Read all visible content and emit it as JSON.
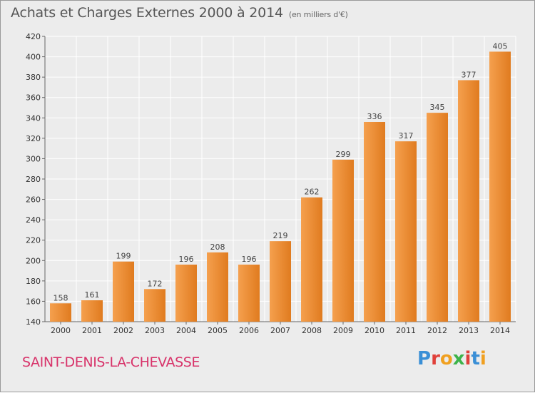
{
  "title": "Achats et Charges Externes 2000 à 2014",
  "unit_label": "(en milliers d'€)",
  "commune": "SAINT-DENIS-LA-CHEVASSE",
  "logo": {
    "letters": [
      "P",
      "r",
      "o",
      "x",
      "i",
      "t",
      "i"
    ],
    "colors": [
      "#3a8fd6",
      "#e0403a",
      "#f0a020",
      "#3db34a",
      "#e0403a",
      "#3a8fd6",
      "#f0a020"
    ]
  },
  "colors": {
    "bar_light": "#f5a04e",
    "bar_dark": "#e07b1f",
    "grid": "#ffffff",
    "background": "#ececec",
    "commune_text": "#d8336a"
  },
  "chart_data": {
    "type": "bar",
    "title": "Achats et Charges Externes 2000 à 2014",
    "subtitle": "(en milliers d'€)",
    "xlabel": "",
    "ylabel": "",
    "categories": [
      "2000",
      "2001",
      "2002",
      "2003",
      "2004",
      "2005",
      "2006",
      "2007",
      "2008",
      "2009",
      "2010",
      "2011",
      "2012",
      "2013",
      "2014"
    ],
    "values": [
      158,
      161,
      199,
      172,
      196,
      208,
      196,
      219,
      262,
      299,
      336,
      317,
      345,
      377,
      405
    ],
    "ylim": [
      140,
      420
    ],
    "yticks": [
      140,
      160,
      180,
      200,
      220,
      240,
      260,
      280,
      300,
      320,
      340,
      360,
      380,
      400,
      420
    ],
    "grid": true,
    "legend": "none"
  }
}
